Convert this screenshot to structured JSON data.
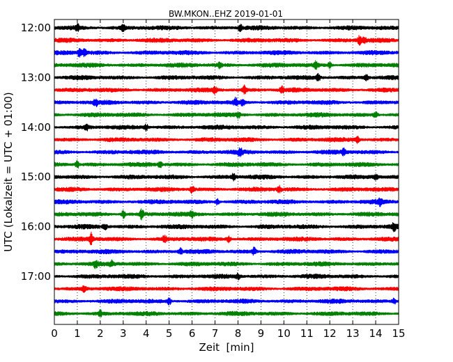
{
  "chart_data": {
    "type": "line",
    "title": "BW.MKON..EHZ 2019-01-01",
    "xlabel": "Zeit  [min]",
    "ylabel": "UTC (Lokalzeit = UTC + 01:00)",
    "xlim": [
      0,
      15
    ],
    "x_ticks": [
      "0",
      "1",
      "2",
      "3",
      "4",
      "5",
      "6",
      "7",
      "8",
      "9",
      "10",
      "11",
      "12",
      "13",
      "14",
      "15"
    ],
    "y_tick_labels": [
      "12:00",
      "13:00",
      "14:00",
      "15:00",
      "16:00",
      "17:00"
    ],
    "grid": "vertical dotted",
    "trace_colors": [
      "#000000",
      "#ff0000",
      "#0000ff",
      "#008000"
    ],
    "series": [
      {
        "start": "12:00",
        "bursts": [
          [
            1.0,
            1.4
          ],
          [
            3.0,
            1.3
          ],
          [
            8.1,
            1.2
          ]
        ]
      },
      {
        "start": "12:15",
        "bursts": [
          [
            13.3,
            1.8
          ],
          [
            13.5,
            1.6
          ]
        ]
      },
      {
        "start": "12:30",
        "bursts": [
          [
            1.1,
            2.2
          ],
          [
            1.3,
            1.6
          ]
        ]
      },
      {
        "start": "12:45",
        "bursts": [
          [
            7.2,
            1.2
          ],
          [
            11.4,
            1.4
          ],
          [
            12.0,
            1.2
          ]
        ]
      },
      {
        "start": "13:00",
        "bursts": [
          [
            11.5,
            1.3
          ],
          [
            13.6,
            1.2
          ]
        ]
      },
      {
        "start": "13:15",
        "bursts": [
          [
            8.3,
            1.7
          ],
          [
            9.9,
            1.5
          ],
          [
            7.0,
            1.2
          ]
        ]
      },
      {
        "start": "13:30",
        "bursts": [
          [
            7.9,
            1.6
          ],
          [
            8.2,
            1.3
          ],
          [
            1.8,
            1.2
          ]
        ]
      },
      {
        "start": "13:45",
        "bursts": [
          [
            14.0,
            1.4
          ],
          [
            8.0,
            1.2
          ]
        ]
      },
      {
        "start": "14:00",
        "bursts": [
          [
            1.4,
            1.3
          ],
          [
            4.0,
            1.2
          ]
        ]
      },
      {
        "start": "14:15",
        "bursts": [
          [
            13.2,
            1.2
          ]
        ]
      },
      {
        "start": "14:30",
        "bursts": [
          [
            8.1,
            1.4
          ],
          [
            12.6,
            1.2
          ]
        ]
      },
      {
        "start": "14:45",
        "bursts": [
          [
            1.0,
            1.4
          ],
          [
            4.6,
            1.2
          ]
        ]
      },
      {
        "start": "15:00",
        "bursts": [
          [
            7.8,
            1.3
          ],
          [
            14.0,
            1.2
          ]
        ]
      },
      {
        "start": "15:15",
        "bursts": [
          [
            6.0,
            1.5
          ],
          [
            9.8,
            1.2
          ]
        ]
      },
      {
        "start": "15:30",
        "bursts": [
          [
            7.1,
            1.4
          ],
          [
            14.2,
            1.2
          ]
        ]
      },
      {
        "start": "15:45",
        "bursts": [
          [
            3.0,
            1.7
          ],
          [
            3.8,
            2.0
          ],
          [
            6.0,
            1.2
          ]
        ]
      },
      {
        "start": "16:00",
        "bursts": [
          [
            14.8,
            1.4
          ],
          [
            2.2,
            1.2
          ]
        ]
      },
      {
        "start": "16:15",
        "bursts": [
          [
            1.6,
            2.5
          ],
          [
            4.8,
            1.4
          ],
          [
            7.6,
            1.3
          ]
        ]
      },
      {
        "start": "16:30",
        "bursts": [
          [
            8.7,
            1.5
          ],
          [
            5.5,
            1.2
          ]
        ]
      },
      {
        "start": "16:45",
        "bursts": [
          [
            1.8,
            1.2
          ],
          [
            2.5,
            1.2
          ]
        ]
      },
      {
        "start": "17:00",
        "bursts": [
          [
            8.0,
            1.2
          ]
        ]
      },
      {
        "start": "17:15",
        "bursts": [
          [
            1.3,
            1.1
          ]
        ]
      },
      {
        "start": "17:30",
        "bursts": [
          [
            5.0,
            1.4
          ],
          [
            14.8,
            1.2
          ]
        ]
      },
      {
        "start": "17:45",
        "bursts": [
          [
            2.0,
            1.1
          ]
        ]
      }
    ]
  }
}
